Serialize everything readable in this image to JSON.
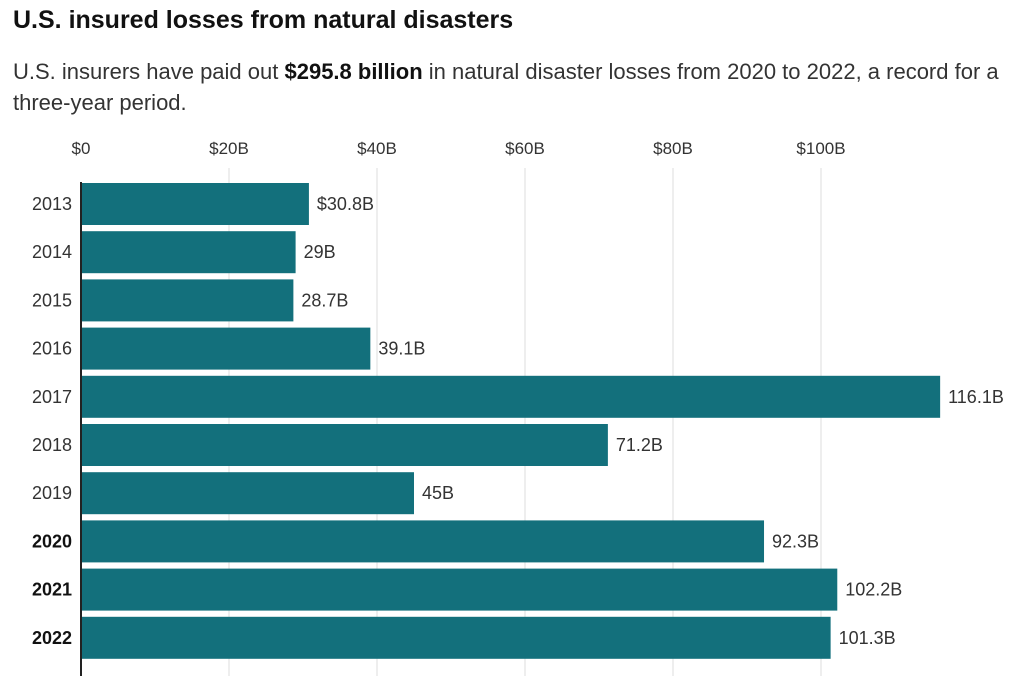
{
  "header": {
    "title": "U.S. insured losses from natural disasters",
    "subtitle_before": "U.S. insurers have paid out ",
    "subtitle_bold": "$295.8 billion",
    "subtitle_after": " in natural disaster losses from 2020 to 2022, a record for a three-year period."
  },
  "colors": {
    "bar": "#13707c",
    "grid": "#dddddd",
    "axis": "#222222",
    "text": "#333333"
  },
  "chart_data": {
    "type": "bar",
    "orientation": "horizontal",
    "title": "U.S. insured losses from natural disasters",
    "xlim": [
      0,
      116.1
    ],
    "xticks": [
      0,
      20,
      40,
      60,
      80,
      100
    ],
    "xtick_labels": [
      "$0",
      "$20B",
      "$40B",
      "$60B",
      "$80B",
      "$100B"
    ],
    "grid": true,
    "categories": [
      "2013",
      "2014",
      "2015",
      "2016",
      "2017",
      "2018",
      "2019",
      "2020",
      "2021",
      "2022"
    ],
    "values": [
      30.8,
      29,
      28.7,
      39.1,
      116.1,
      71.2,
      45,
      92.3,
      102.2,
      101.3
    ],
    "data_labels": [
      "$30.8B",
      "29B",
      "28.7B",
      "39.1B",
      "116.1B",
      "71.2B",
      "45B",
      "92.3B",
      "102.2B",
      "101.3B"
    ],
    "highlighted_categories": [
      "2020",
      "2021",
      "2022"
    ],
    "unit": "billion USD"
  }
}
